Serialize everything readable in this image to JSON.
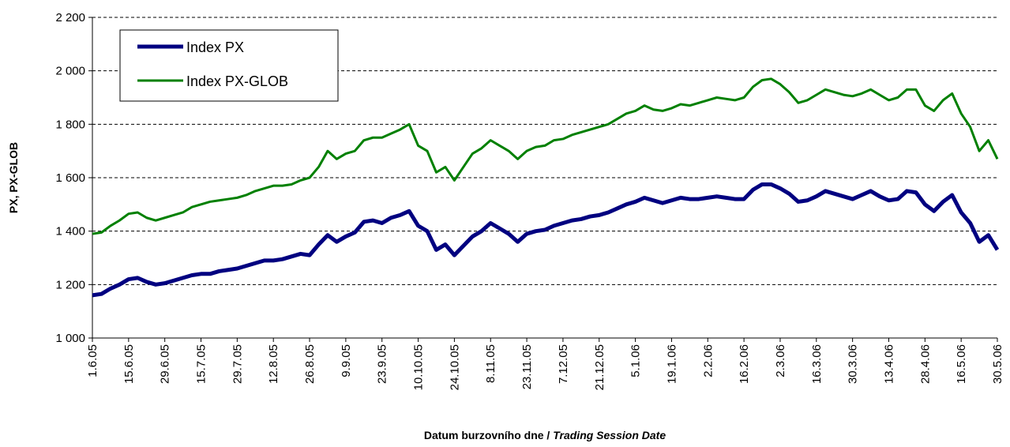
{
  "chart_data": {
    "type": "line",
    "ylabel": "PX, PX-GLOB",
    "xlabel": "Datum burzovního dne / ",
    "xlabel_italic": "Trading Session Date",
    "categories": [
      "1.6.05",
      null,
      null,
      null,
      "15.6.05",
      null,
      null,
      null,
      "29.6.05",
      null,
      null,
      null,
      "15.7.05",
      null,
      null,
      null,
      "29.7.05",
      null,
      null,
      null,
      "12.8.05",
      null,
      null,
      null,
      "26.8.05",
      null,
      null,
      null,
      "9.9.05",
      null,
      null,
      null,
      "23.9.05",
      null,
      null,
      null,
      "10.10.05",
      null,
      null,
      null,
      "24.10.05",
      null,
      null,
      null,
      "8.11.05",
      null,
      null,
      null,
      "23.11.05",
      null,
      null,
      null,
      "7.12.05",
      null,
      null,
      null,
      "21.12.05",
      null,
      null,
      null,
      "5.1.06",
      null,
      null,
      null,
      "19.1.06",
      null,
      null,
      null,
      "2.2.06",
      null,
      null,
      null,
      "16.2.06",
      null,
      null,
      null,
      "2.3.06",
      null,
      null,
      null,
      "16.3.06",
      null,
      null,
      null,
      "30.3.06",
      null,
      null,
      null,
      "13.4.06",
      null,
      null,
      null,
      "28.4.06",
      null,
      null,
      null,
      "16.5.06",
      null,
      null,
      null,
      "30.5.06"
    ],
    "series": [
      {
        "name": "Index PX",
        "color": "#000080",
        "width": 5,
        "values": [
          1160,
          1165,
          1185,
          1200,
          1220,
          1225,
          1210,
          1200,
          1205,
          1215,
          1225,
          1235,
          1240,
          1240,
          1250,
          1255,
          1260,
          1270,
          1280,
          1290,
          1290,
          1295,
          1305,
          1315,
          1310,
          1350,
          1385,
          1360,
          1380,
          1395,
          1435,
          1440,
          1430,
          1450,
          1460,
          1475,
          1420,
          1400,
          1330,
          1350,
          1310,
          1345,
          1380,
          1400,
          1430,
          1410,
          1390,
          1360,
          1390,
          1400,
          1405,
          1420,
          1430,
          1440,
          1445,
          1455,
          1460,
          1470,
          1485,
          1500,
          1510,
          1525,
          1515,
          1505,
          1515,
          1525,
          1520,
          1520,
          1525,
          1530,
          1525,
          1520,
          1520,
          1555,
          1575,
          1575,
          1560,
          1540,
          1510,
          1515,
          1530,
          1550,
          1540,
          1530,
          1520,
          1535,
          1550,
          1530,
          1515,
          1520,
          1550,
          1545,
          1500,
          1475,
          1510,
          1535,
          1470,
          1430,
          1360,
          1385,
          1330
        ]
      },
      {
        "name": "Index PX-GLOB",
        "color": "#008000",
        "width": 3,
        "values": [
          1390,
          1395,
          1420,
          1440,
          1465,
          1470,
          1450,
          1440,
          1450,
          1460,
          1470,
          1490,
          1500,
          1510,
          1515,
          1520,
          1525,
          1535,
          1550,
          1560,
          1570,
          1570,
          1575,
          1590,
          1600,
          1640,
          1700,
          1670,
          1690,
          1700,
          1740,
          1750,
          1750,
          1765,
          1780,
          1800,
          1720,
          1700,
          1620,
          1640,
          1590,
          1640,
          1690,
          1710,
          1740,
          1720,
          1700,
          1670,
          1700,
          1715,
          1720,
          1740,
          1745,
          1760,
          1770,
          1780,
          1790,
          1800,
          1820,
          1840,
          1850,
          1870,
          1855,
          1850,
          1860,
          1875,
          1870,
          1880,
          1890,
          1900,
          1895,
          1890,
          1900,
          1940,
          1965,
          1970,
          1950,
          1920,
          1880,
          1890,
          1910,
          1930,
          1920,
          1910,
          1905,
          1915,
          1930,
          1910,
          1890,
          1900,
          1930,
          1930,
          1870,
          1850,
          1890,
          1915,
          1840,
          1790,
          1700,
          1740,
          1670
        ]
      }
    ],
    "ylim": [
      1000,
      2200
    ],
    "yticks": [
      {
        "value": 1000,
        "label": "1 000"
      },
      {
        "value": 1200,
        "label": "1 200"
      },
      {
        "value": 1400,
        "label": "1 400"
      },
      {
        "value": 1600,
        "label": "1 600"
      },
      {
        "value": 1800,
        "label": "1 800"
      },
      {
        "value": 2000,
        "label": "2 000"
      },
      {
        "value": 2200,
        "label": "2 200"
      }
    ],
    "grid": true,
    "legend": "top-left"
  }
}
